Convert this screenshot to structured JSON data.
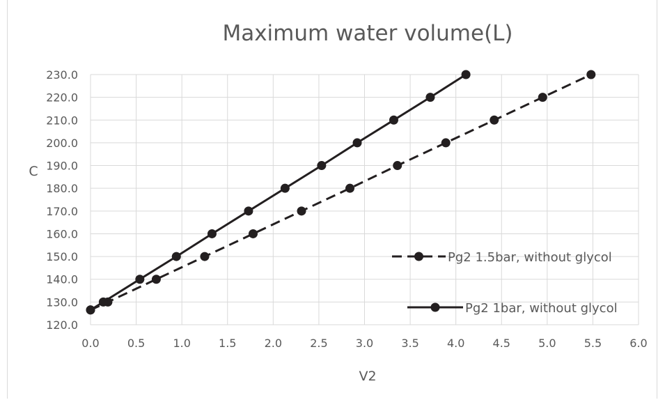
{
  "chart_data": {
    "type": "line",
    "title": "Maximum water volume(L)",
    "xlabel": "V2",
    "ylabel": "C",
    "xlim": [
      0.0,
      6.0
    ],
    "ylim": [
      120.0,
      230.0
    ],
    "x_ticks": [
      "0.0",
      "0.5",
      "1.0",
      "1.5",
      "2.0",
      "2.5",
      "3.0",
      "3.5",
      "4.0",
      "4.5",
      "5.0",
      "5.5",
      "6.0"
    ],
    "y_ticks": [
      "120.0",
      "130.0",
      "140.0",
      "150.0",
      "160.0",
      "170.0",
      "180.0",
      "190.0",
      "200.0",
      "210.0",
      "220.0",
      "230.0"
    ],
    "grid": true,
    "legend_position": "right",
    "series": [
      {
        "name": "Pg2 1.5bar, without glycol",
        "line_style": "dashed",
        "color": "#231f20",
        "points": [
          [
            0.0,
            126.5
          ],
          [
            0.19,
            130.0
          ],
          [
            0.72,
            140.0
          ],
          [
            1.25,
            150.0
          ],
          [
            1.78,
            160.0
          ],
          [
            2.31,
            170.0
          ],
          [
            2.84,
            180.0
          ],
          [
            3.36,
            190.0
          ],
          [
            3.89,
            200.0
          ],
          [
            4.42,
            210.0
          ],
          [
            4.95,
            220.0
          ],
          [
            5.48,
            230.0
          ]
        ]
      },
      {
        "name": "Pg2 1bar, without glycol",
        "line_style": "solid",
        "color": "#231f20",
        "points": [
          [
            0.0,
            126.5
          ],
          [
            0.14,
            130.0
          ],
          [
            0.54,
            140.0
          ],
          [
            0.94,
            150.0
          ],
          [
            1.33,
            160.0
          ],
          [
            1.73,
            170.0
          ],
          [
            2.13,
            180.0
          ],
          [
            2.53,
            190.0
          ],
          [
            2.92,
            200.0
          ],
          [
            3.32,
            210.0
          ],
          [
            3.72,
            220.0
          ],
          [
            4.11,
            230.0
          ]
        ]
      }
    ]
  }
}
